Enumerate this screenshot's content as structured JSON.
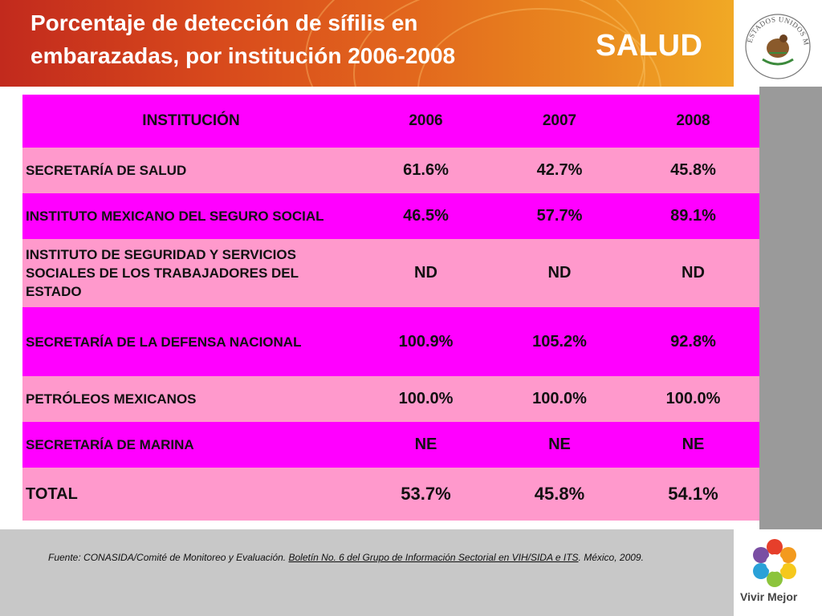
{
  "slide": {
    "title": "Porcentaje de detección de sífilis en embarazadas, por institución 2006-2008",
    "brand": "SALUD",
    "seal_text": "ESTADOS UNIDOS MEXICANOS",
    "footer_logo_text": "Vivir Mejor"
  },
  "table": {
    "headers": [
      "INSTITUCIÓN",
      "2006",
      "2007",
      "2008"
    ],
    "rows": [
      {
        "institution": "SECRETARÍA DE SALUD",
        "values": [
          "61.6%",
          "42.7%",
          "45.8%"
        ],
        "color": "#ff99cc"
      },
      {
        "institution": "INSTITUTO MEXICANO DEL SEGURO SOCIAL",
        "values": [
          "46.5%",
          "57.7%",
          "89.1%"
        ],
        "color": "#ff00ff"
      },
      {
        "institution": "INSTITUTO DE SEGURIDAD Y SERVICIOS SOCIALES DE LOS TRABAJADORES DEL ESTADO",
        "values": [
          "ND",
          "ND",
          "ND"
        ],
        "color": "#ff99cc"
      },
      {
        "institution": "SECRETARÍA DE LA DEFENSA NACIONAL",
        "values": [
          "100.9%",
          "105.2%",
          "92.8%"
        ],
        "color": "#ff00ff"
      },
      {
        "institution": "PETRÓLEOS MEXICANOS",
        "values": [
          "100.0%",
          "100.0%",
          "100.0%"
        ],
        "color": "#ff99cc"
      },
      {
        "institution": "SECRETARÍA DE MARINA",
        "values": [
          "NE",
          "NE",
          "NE"
        ],
        "color": "#ff00ff"
      },
      {
        "institution": "TOTAL",
        "values": [
          "53.7%",
          "45.8%",
          "54.1%"
        ],
        "color": "#ff99cc"
      }
    ]
  },
  "source": {
    "prefix": "Fuente: CONASIDA/Comité de Monitoreo y Evaluación. ",
    "underlined": "Boletín No. 6 del  Grupo de Información Sectorial en VIH/SIDA e ITS",
    "suffix": ". México, 2009."
  },
  "colors": {
    "magenta": "#ff00ff",
    "pink": "#ff99cc",
    "header_orange": "#e2661d"
  }
}
